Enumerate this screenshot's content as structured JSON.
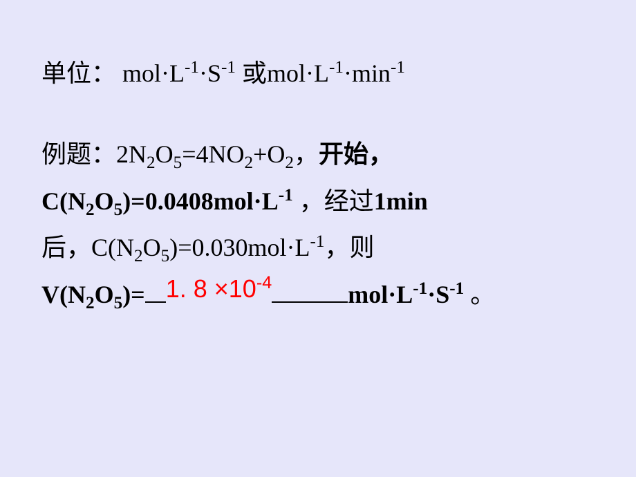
{
  "units": {
    "label": "单位：",
    "unit1_prefix": " mol·L",
    "unit1_sup1": "-1",
    "unit1_mid": "·S",
    "unit1_sup2": "-1",
    "or_text": " 或mol·L",
    "unit2_sup1": "-1",
    "unit2_mid": "·min",
    "unit2_sup2": "-1"
  },
  "problem": {
    "label": "例题：",
    "equation_prefix": "2N",
    "equation_sub1": "2",
    "equation_mid1": "O",
    "equation_sub2": "5",
    "equation_eq": "=4NO",
    "equation_sub3": "2",
    "equation_mid2": "+O",
    "equation_sub4": "2",
    "equation_comma": "，",
    "start_text": "开始，",
    "conc1_prefix": "C(N",
    "conc1_sub1": "2",
    "conc1_mid": "O",
    "conc1_sub2": "5",
    "conc1_close": ")=0.0408mol·",
    "conc1_L": "L",
    "conc1_sup": "-1",
    "conc1_comma": " ，",
    "time_text": "经过",
    "time_value": "1min",
    "after_text": "后，",
    "conc2_prefix": "C(N",
    "conc2_sub1": "2",
    "conc2_mid": "O",
    "conc2_sub2": "5",
    "conc2_close": ")=0.030mol·L",
    "conc2_sup": "-1",
    "conc2_comma": "，",
    "then_text": "则",
    "rate_prefix": "V(N",
    "rate_sub1": "2",
    "rate_mid": "O",
    "rate_sub2": "5",
    "rate_close": ")=",
    "answer_base": "1. 8 ×10",
    "answer_sup": "-4",
    "rate_unit_prefix": "mol·L",
    "rate_unit_sup1": "-1",
    "rate_unit_mid": "·S",
    "rate_unit_sup2": "-1",
    "period": " 。"
  },
  "colors": {
    "background": "#e6e6fa",
    "text": "#000000",
    "answer": "#ff0000"
  }
}
